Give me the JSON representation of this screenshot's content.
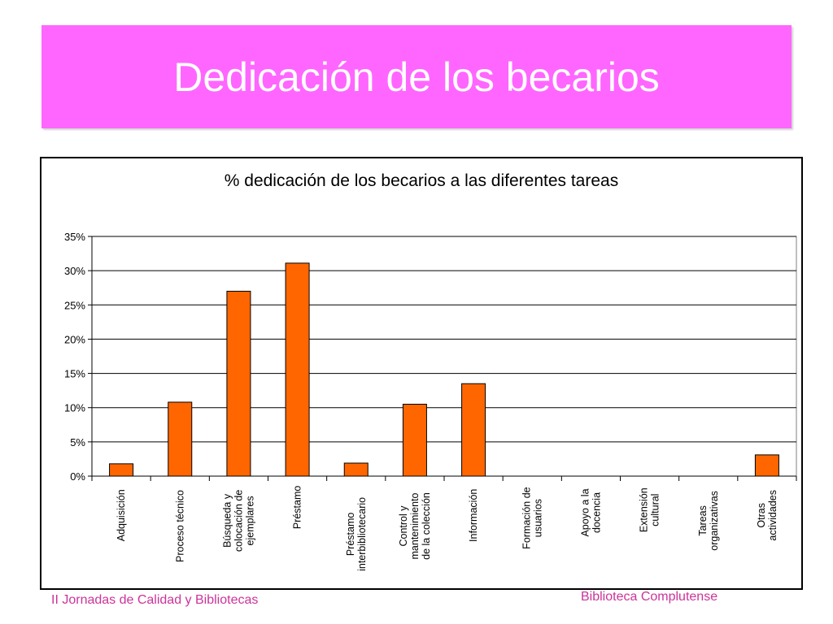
{
  "slide": {
    "title": "Dedicación de los becarios",
    "banner_color": "#ff66ff",
    "footer_left": "II Jornadas de Calidad y Bibliotecas",
    "footer_right": "Biblioteca Complutense",
    "footer_color": "#cc3399"
  },
  "chart_data": {
    "type": "bar",
    "title": "% dedicación de los becarios a las diferentes tareas",
    "xlabel": "",
    "ylabel": "",
    "ylim": [
      0,
      35
    ],
    "y_ticks": [
      "0%",
      "5%",
      "10%",
      "15%",
      "20%",
      "25%",
      "30%",
      "35%"
    ],
    "y_tick_values": [
      0,
      5,
      10,
      15,
      20,
      25,
      30,
      35
    ],
    "grid": true,
    "legend": "none",
    "bar_color": "#ff6600",
    "categories": [
      [
        "Adquisición"
      ],
      [
        "Proceso técnico"
      ],
      [
        "Búsqueda y",
        "colocación de",
        "ejemplares"
      ],
      [
        "Préstamo"
      ],
      [
        "Préstamo",
        "interbibliotecario"
      ],
      [
        "Control y",
        "mantenimiento",
        "de la colección"
      ],
      [
        "Información"
      ],
      [
        "Formación de",
        "usuarios"
      ],
      [
        "Apoyo a la",
        "docencia"
      ],
      [
        "Extensión",
        "cultural"
      ],
      [
        "Tareas",
        "organizativas"
      ],
      [
        "Otras",
        "actividades"
      ]
    ],
    "values": [
      1.8,
      10.8,
      27.0,
      31.1,
      1.9,
      10.5,
      13.5,
      0,
      0,
      0,
      0,
      3.1
    ]
  }
}
